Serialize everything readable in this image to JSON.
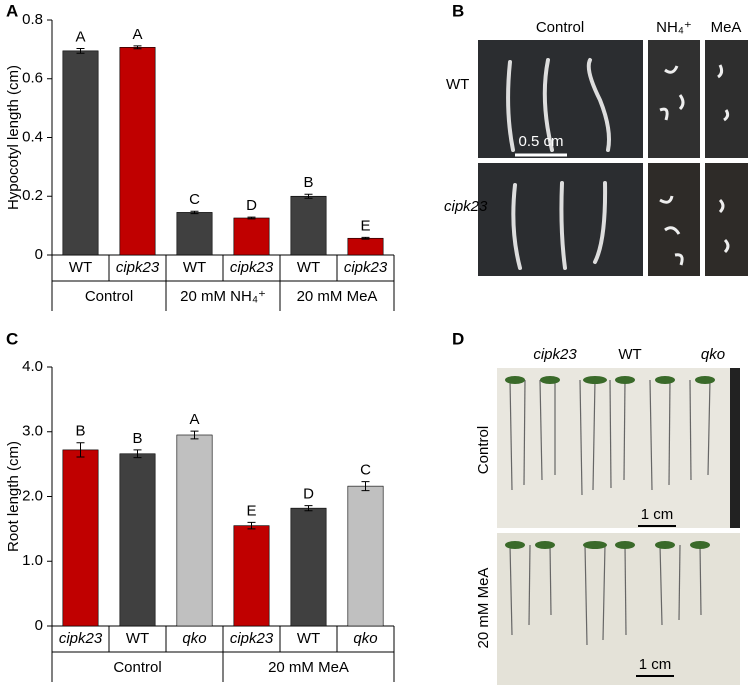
{
  "chart_data": [
    {
      "type": "bar",
      "panel_label": "A",
      "y_label": "Hypocotyl length (cm)",
      "categories": [
        "WT",
        "cipk23",
        "WT",
        "cipk23",
        "WT",
        "cipk23"
      ],
      "italic": [
        false,
        true,
        false,
        true,
        false,
        true
      ],
      "groups": [
        "Control",
        "20 mM NH₄⁺",
        "20 mM MeA"
      ],
      "values": [
        0.695,
        0.707,
        0.145,
        0.126,
        0.2,
        0.057
      ],
      "errors": [
        0.008,
        0.005,
        0.004,
        0.003,
        0.007,
        0.003
      ],
      "annotations": [
        "A",
        "A",
        "C",
        "D",
        "B",
        "E"
      ],
      "colors": [
        "#404040",
        "#c00000",
        "#404040",
        "#c00000",
        "#404040",
        "#c00000"
      ],
      "ylim": [
        0,
        0.8
      ],
      "yticks": [
        0,
        0.2,
        0.4,
        0.6,
        0.8
      ]
    },
    {
      "type": "bar",
      "panel_label": "C",
      "y_label": "Root length (cm)",
      "categories": [
        "cipk23",
        "WT",
        "qko",
        "cipk23",
        "WT",
        "qko"
      ],
      "italic": [
        true,
        false,
        true,
        true,
        false,
        true
      ],
      "groups": [
        "Control",
        "20 mM MeA"
      ],
      "values": [
        2.72,
        2.66,
        2.95,
        1.55,
        1.82,
        2.16
      ],
      "errors": [
        0.11,
        0.06,
        0.06,
        0.05,
        0.04,
        0.07
      ],
      "annotations": [
        "B",
        "B",
        "A",
        "E",
        "D",
        "C"
      ],
      "colors": [
        "#c00000",
        "#404040",
        "#c0c0c0",
        "#c00000",
        "#404040",
        "#c0c0c0"
      ],
      "ylim": [
        0,
        4
      ],
      "yticks": [
        0,
        {
          "value": 1,
          "label": "1.0"
        },
        {
          "value": 2,
          "label": "2.0"
        },
        {
          "value": 3,
          "label": "3.0"
        },
        {
          "value": 4,
          "label": "4.0"
        }
      ]
    }
  ],
  "photos": [
    {
      "panel_label": "B",
      "columns": [
        "Control",
        "NH₄⁺",
        "MeA"
      ],
      "rows": [
        "WT",
        "cipk23"
      ],
      "scale_bar": "0.5 cm"
    },
    {
      "panel_label": "D",
      "columns": [
        "cipk23",
        "WT",
        "qko"
      ],
      "rows": [
        "Control",
        "20 mM MeA"
      ],
      "scale_bars": [
        "1 cm",
        "1 cm"
      ]
    }
  ]
}
